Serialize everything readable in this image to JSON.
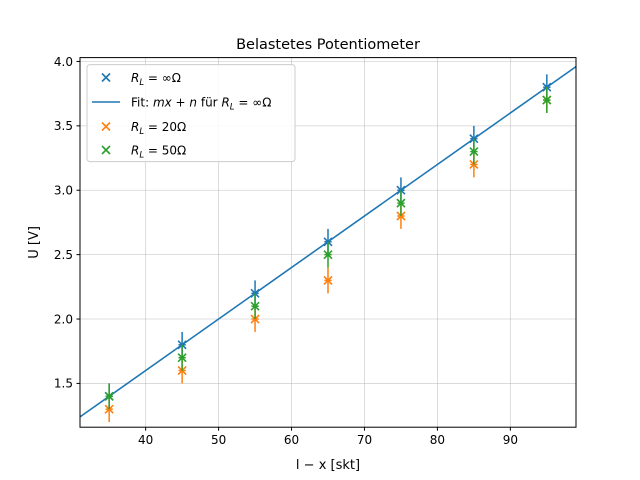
{
  "chart_data": {
    "type": "scatter",
    "title": "Belastetes Potentiometer",
    "xlabel": "l − x [skt]",
    "ylabel": "U [V]",
    "xlim": [
      31,
      99
    ],
    "ylim": [
      1.16,
      4.03
    ],
    "xticks": [
      40,
      50,
      60,
      70,
      80,
      90
    ],
    "yticks": [
      1.5,
      2.0,
      2.5,
      3.0,
      3.5,
      4.0
    ],
    "xtick_labels": [
      "40",
      "50",
      "60",
      "70",
      "80",
      "90"
    ],
    "ytick_labels": [
      "1.5",
      "2.0",
      "2.5",
      "3.0",
      "3.5",
      "4.0"
    ],
    "grid": true,
    "legend_position": "top-left",
    "x_error": 0.5,
    "y_error": 0.1,
    "series": [
      {
        "name": "R_L = ∞Ω",
        "color": "#1f77b4",
        "marker": "x",
        "x": [
          35,
          45,
          55,
          65,
          75,
          85,
          95
        ],
        "y": [
          1.4,
          1.8,
          2.2,
          2.6,
          3.0,
          3.4,
          3.8
        ]
      },
      {
        "name": "R_L = 20Ω",
        "color": "#ff7f0e",
        "marker": "x",
        "x": [
          35,
          45,
          55,
          65,
          75,
          85,
          95
        ],
        "y": [
          1.3,
          1.6,
          2.0,
          2.3,
          2.8,
          3.2,
          3.7
        ]
      },
      {
        "name": "R_L = 50Ω",
        "color": "#2ca02c",
        "marker": "x",
        "x": [
          35,
          45,
          55,
          65,
          75,
          85,
          95
        ],
        "y": [
          1.4,
          1.7,
          2.1,
          2.5,
          2.9,
          3.3,
          3.7
        ]
      }
    ],
    "fit": {
      "name": "Fit: mx + n für R_L = ∞Ω",
      "color": "#1f77b4",
      "slope": 0.04,
      "intercept": 0.0
    },
    "legend": {
      "entries": [
        {
          "kind": "marker",
          "color": "#1f77b4",
          "label_main": "R",
          "label_sub": "L",
          "label_rest": " = ∞Ω"
        },
        {
          "kind": "line",
          "color": "#1f77b4",
          "label_prefix": "Fit: ",
          "label_main": "mx + n",
          "label_mid": " für ",
          "label_var": "R",
          "label_sub": "L",
          "label_rest": " = ∞Ω"
        },
        {
          "kind": "marker",
          "color": "#ff7f0e",
          "label_main": "R",
          "label_sub": "L",
          "label_rest": " = 20Ω"
        },
        {
          "kind": "marker",
          "color": "#2ca02c",
          "label_main": "R",
          "label_sub": "L",
          "label_rest": " = 50Ω"
        }
      ]
    }
  }
}
